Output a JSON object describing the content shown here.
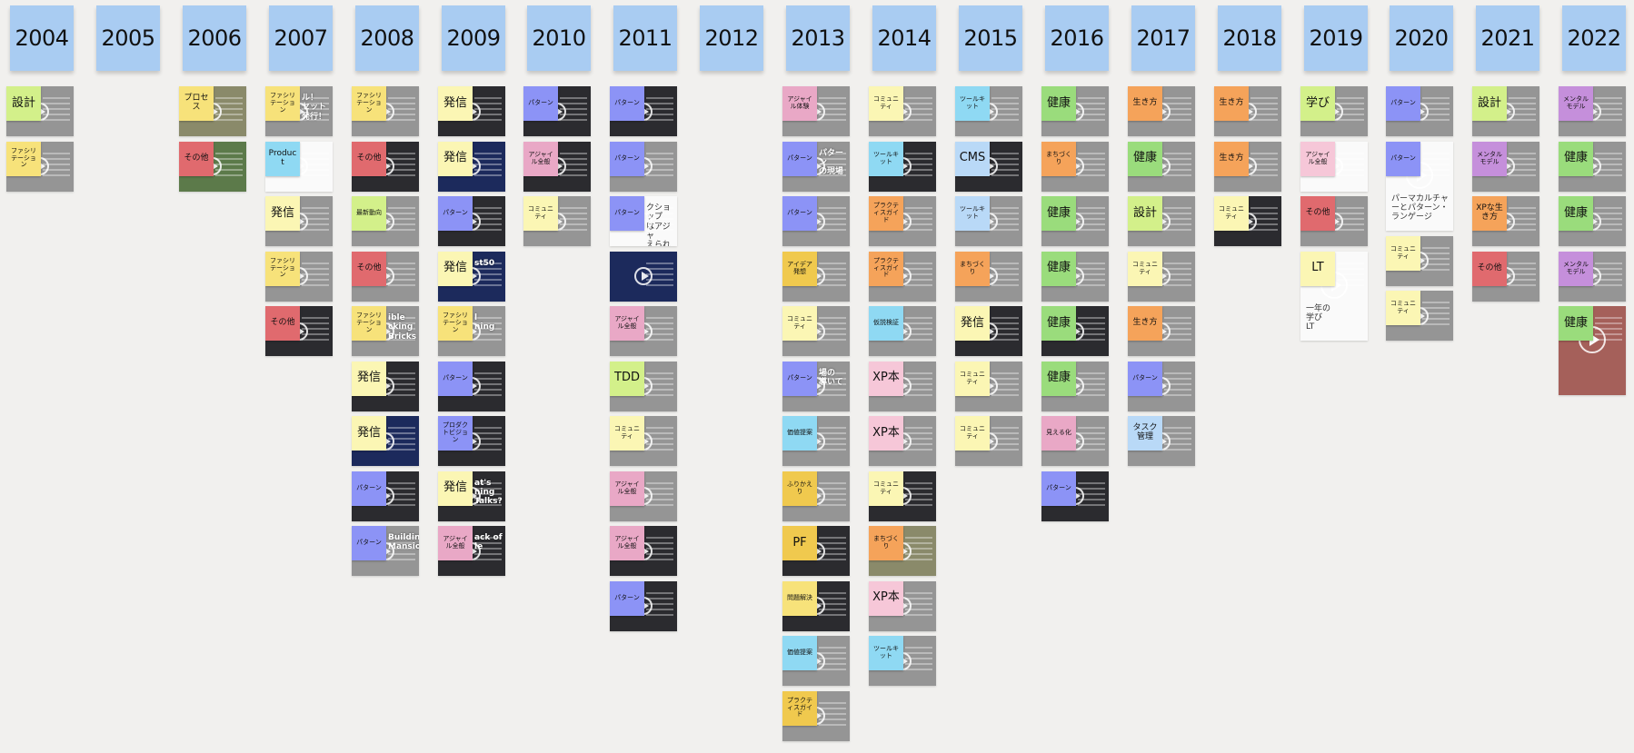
{
  "board": {
    "columns": [
      {
        "year": "2004",
        "cards": [
          {
            "tag": "設計",
            "color": "lime",
            "size": "lg"
          },
          {
            "tag": "ファシリテーション",
            "color": "yellow",
            "size": "sm"
          }
        ]
      },
      {
        "year": "2005",
        "cards": []
      },
      {
        "year": "2006",
        "cards": [
          {
            "tag": "プロセス",
            "color": "yellow",
            "size": "md",
            "bg": "olive"
          },
          {
            "tag": "その他",
            "color": "red",
            "size": "md",
            "bg": "green"
          }
        ]
      },
      {
        "year": "2007",
        "cards": [
          {
            "tag": "ファシリテーション",
            "color": "yellow",
            "size": "sm",
            "overlay": "ル！\nセット\n発行！"
          },
          {
            "tag": "Product",
            "color": "cyan",
            "size": "md",
            "bg": "white"
          },
          {
            "tag": "発信",
            "color": "lyellow",
            "size": "lg"
          },
          {
            "tag": "ファシリテーション",
            "color": "yellow",
            "size": "sm"
          },
          {
            "tag": "その他",
            "color": "red",
            "size": "md",
            "bg": "dark"
          }
        ]
      },
      {
        "year": "2008",
        "cards": [
          {
            "tag": "ファシリテーション",
            "color": "yellow",
            "size": "sm"
          },
          {
            "tag": "その他",
            "color": "red",
            "size": "md",
            "bg": "dark"
          },
          {
            "tag": "最新動向",
            "color": "lime",
            "size": "sm"
          },
          {
            "tag": "その他",
            "color": "red",
            "size": "md"
          },
          {
            "tag": "ファシリテーション",
            "color": "yellow",
            "size": "sm",
            "overlay": "ible\ncking\nBricks"
          },
          {
            "tag": "発信",
            "color": "lyellow",
            "size": "lg",
            "bg": "dark"
          },
          {
            "tag": "発信",
            "color": "lyellow",
            "size": "lg",
            "bg": "navy"
          },
          {
            "tag": "パターン",
            "color": "blue",
            "size": "sm",
            "bg": "dark"
          },
          {
            "tag": "パターン",
            "color": "blue",
            "size": "sm",
            "overlay": "Building\nMansion"
          }
        ]
      },
      {
        "year": "2009",
        "cards": [
          {
            "tag": "発信",
            "color": "lyellow",
            "size": "lg",
            "bg": "dark"
          },
          {
            "tag": "発信",
            "color": "lyellow",
            "size": "lg",
            "bg": "navy"
          },
          {
            "tag": "パターン",
            "color": "blue",
            "size": "sm",
            "bg": "dark"
          },
          {
            "tag": "発信",
            "color": "lyellow",
            "size": "lg",
            "bg": "navy",
            "overlay": "st50"
          },
          {
            "tag": "ファシリテーション",
            "color": "yellow",
            "size": "sm",
            "overlay": "l\nning"
          },
          {
            "tag": "パターン",
            "color": "blue",
            "size": "sm",
            "bg": "dark"
          },
          {
            "tag": "プロダクトビジョン",
            "color": "blue",
            "size": "sm",
            "bg": "dark"
          },
          {
            "tag": "発信",
            "color": "lyellow",
            "size": "lg",
            "bg": "dark",
            "overlay": "at's\nning\nTalks?"
          },
          {
            "tag": "アジャイル全般",
            "color": "pink",
            "size": "sm",
            "bg": "dark",
            "overlay": "ack of\nle"
          }
        ]
      },
      {
        "year": "2010",
        "cards": [
          {
            "tag": "パターン",
            "color": "blue",
            "size": "sm",
            "bg": "dark"
          },
          {
            "tag": "アジャイル全般",
            "color": "pink",
            "size": "sm",
            "bg": "dark"
          },
          {
            "tag": "コミュニティ",
            "color": "lyellow",
            "size": "sm"
          }
        ]
      },
      {
        "year": "2011",
        "cards": [
          {
            "tag": "パターン",
            "color": "blue",
            "size": "sm",
            "bg": "dark"
          },
          {
            "tag": "パターン",
            "color": "blue",
            "size": "sm"
          },
          {
            "tag": "パターン",
            "color": "blue",
            "size": "sm",
            "bg": "white",
            "overlay": "クショップ\nはアジャ\nえられる？"
          },
          {
            "tag": "",
            "color": "",
            "size": "md",
            "bg": "navy"
          },
          {
            "tag": "アジャイル全般",
            "color": "pink",
            "size": "sm"
          },
          {
            "tag": "TDD",
            "color": "lime",
            "size": "lg"
          },
          {
            "tag": "コミュニティ",
            "color": "lyellow",
            "size": "sm"
          },
          {
            "tag": "アジャイル全般",
            "color": "pink",
            "size": "sm"
          },
          {
            "tag": "アジャイル全般",
            "color": "pink",
            "size": "sm",
            "bg": "dark"
          },
          {
            "tag": "パターン",
            "color": "blue",
            "size": "sm",
            "bg": "dark"
          }
        ]
      },
      {
        "year": "2012",
        "cards": []
      },
      {
        "year": "2013",
        "cards": [
          {
            "tag": "アジャイル体験",
            "color": "pink",
            "size": "sm"
          },
          {
            "tag": "パターン",
            "color": "blue",
            "size": "sm",
            "overlay": "パターン\nの現場"
          },
          {
            "tag": "パターン",
            "color": "blue",
            "size": "sm"
          },
          {
            "tag": "アイデア発想",
            "color": "gold",
            "size": "sm"
          },
          {
            "tag": "コミュニティ",
            "color": "lyellow",
            "size": "sm"
          },
          {
            "tag": "パターン",
            "color": "blue",
            "size": "sm",
            "overlay": "場の\n導いて"
          },
          {
            "tag": "価値提案",
            "color": "cyan",
            "size": "sm"
          },
          {
            "tag": "ふりかえり",
            "color": "gold",
            "size": "sm"
          },
          {
            "tag": "PF",
            "color": "gold",
            "size": "lg",
            "bg": "dark"
          },
          {
            "tag": "問題解決",
            "color": "yellow",
            "size": "sm",
            "bg": "dark"
          },
          {
            "tag": "価値提案",
            "color": "cyan",
            "size": "sm"
          },
          {
            "tag": "プラクティスガイド",
            "color": "gold",
            "size": "sm"
          }
        ]
      },
      {
        "year": "2014",
        "cards": [
          {
            "tag": "コミュニティ",
            "color": "lyellow",
            "size": "sm"
          },
          {
            "tag": "ツールキット",
            "color": "cyan",
            "size": "sm",
            "bg": "dark"
          },
          {
            "tag": "プラクティスガイド",
            "color": "orange",
            "size": "sm"
          },
          {
            "tag": "プラクティスガイド",
            "color": "orange",
            "size": "sm"
          },
          {
            "tag": "仮説検証",
            "color": "cyan",
            "size": "sm"
          },
          {
            "tag": "XP本",
            "color": "lpink",
            "size": "lg"
          },
          {
            "tag": "XP本",
            "color": "lpink",
            "size": "lg"
          },
          {
            "tag": "コミュニティ",
            "color": "lyellow",
            "size": "sm",
            "bg": "dark"
          },
          {
            "tag": "まちづくり",
            "color": "orange",
            "size": "sm",
            "bg": "olive"
          },
          {
            "tag": "XP本",
            "color": "lpink",
            "size": "lg"
          },
          {
            "tag": "ツールキット",
            "color": "cyan",
            "size": "sm"
          }
        ]
      },
      {
        "year": "2015",
        "cards": [
          {
            "tag": "ツールキット",
            "color": "cyan",
            "size": "sm"
          },
          {
            "tag": "CMS",
            "color": "lblue",
            "size": "lg",
            "bg": "dark"
          },
          {
            "tag": "ツールキット",
            "color": "lblue",
            "size": "sm"
          },
          {
            "tag": "まちづくり",
            "color": "orange",
            "size": "sm"
          },
          {
            "tag": "発信",
            "color": "lyellow",
            "size": "lg",
            "bg": "dark"
          },
          {
            "tag": "コミュニティ",
            "color": "lyellow",
            "size": "sm"
          },
          {
            "tag": "コミュニティ",
            "color": "lyellow",
            "size": "sm"
          }
        ]
      },
      {
        "year": "2016",
        "cards": [
          {
            "tag": "健康",
            "color": "green",
            "size": "lg"
          },
          {
            "tag": "まちづくり",
            "color": "orange",
            "size": "sm"
          },
          {
            "tag": "健康",
            "color": "green",
            "size": "lg"
          },
          {
            "tag": "健康",
            "color": "green",
            "size": "lg"
          },
          {
            "tag": "健康",
            "color": "green",
            "size": "lg",
            "bg": "dark"
          },
          {
            "tag": "健康",
            "color": "green",
            "size": "lg"
          },
          {
            "tag": "見える化",
            "color": "pink",
            "size": "sm"
          },
          {
            "tag": "パターン",
            "color": "blue",
            "size": "sm",
            "bg": "dark"
          }
        ]
      },
      {
        "year": "2017",
        "cards": [
          {
            "tag": "生き方",
            "color": "orange",
            "size": "md"
          },
          {
            "tag": "健康",
            "color": "green",
            "size": "lg"
          },
          {
            "tag": "設計",
            "color": "lime",
            "size": "lg"
          },
          {
            "tag": "コミュニティ",
            "color": "lyellow",
            "size": "sm"
          },
          {
            "tag": "生き方",
            "color": "orange",
            "size": "md"
          },
          {
            "tag": "パターン",
            "color": "blue",
            "size": "sm"
          },
          {
            "tag": "タスク管理",
            "color": "lblue",
            "size": "md"
          }
        ]
      },
      {
        "year": "2018",
        "cards": [
          {
            "tag": "生き方",
            "color": "orange",
            "size": "md"
          },
          {
            "tag": "生き方",
            "color": "orange",
            "size": "md"
          },
          {
            "tag": "コミュニティ",
            "color": "lyellow",
            "size": "sm",
            "bg": "dark"
          }
        ]
      },
      {
        "year": "2019",
        "cards": [
          {
            "tag": "学び",
            "color": "lime",
            "size": "lg"
          },
          {
            "tag": "アジャイル全般",
            "color": "lpink",
            "size": "sm",
            "bg": "white"
          },
          {
            "tag": "その他",
            "color": "red",
            "size": "md"
          },
          {
            "tag": "LT",
            "color": "lyellow",
            "size": "lg",
            "bg": "white",
            "tall": true,
            "overlay": "一年の\n学び\nLT"
          }
        ]
      },
      {
        "year": "2020",
        "cards": [
          {
            "tag": "パターン",
            "color": "blue",
            "size": "sm"
          },
          {
            "tag": "パターン",
            "color": "blue",
            "size": "sm",
            "bg": "white",
            "tall": true,
            "overlay": "パーマカルチャーとパターン・ランゲージ"
          },
          {
            "tag": "コミュニティ",
            "color": "lyellow",
            "size": "sm"
          },
          {
            "tag": "コミュニティ",
            "color": "lyellow",
            "size": "sm"
          }
        ]
      },
      {
        "year": "2021",
        "cards": [
          {
            "tag": "設計",
            "color": "lime",
            "size": "lg"
          },
          {
            "tag": "メンタルモデル",
            "color": "purple",
            "size": "sm"
          },
          {
            "tag": "XPな生き方",
            "color": "orange",
            "size": "md"
          },
          {
            "tag": "その他",
            "color": "red",
            "size": "md"
          }
        ]
      },
      {
        "year": "2022",
        "cards": [
          {
            "tag": "メンタルモデル",
            "color": "purple",
            "size": "sm"
          },
          {
            "tag": "健康",
            "color": "green",
            "size": "lg"
          },
          {
            "tag": "健康",
            "color": "green",
            "size": "lg"
          },
          {
            "tag": "メンタルモデル",
            "color": "purple",
            "size": "sm"
          },
          {
            "tag": "健康",
            "color": "green",
            "size": "lg",
            "bg": "red",
            "tall": true
          }
        ]
      }
    ]
  },
  "colors": {
    "background": "#f1f0ee",
    "year_note": "#a9ccf2",
    "card_default": "#959595"
  },
  "icons": {
    "play": "play-icon"
  }
}
